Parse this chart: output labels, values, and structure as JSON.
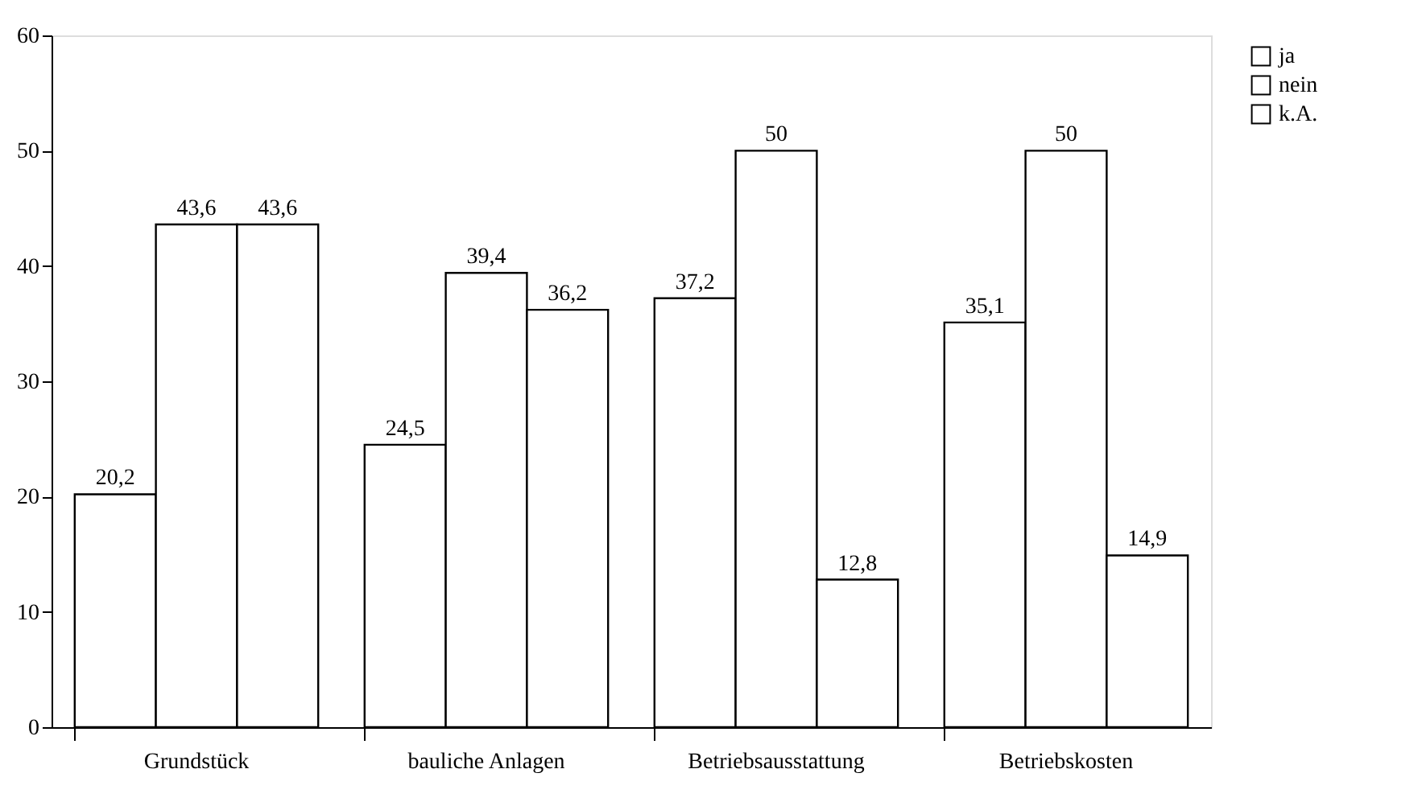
{
  "chart_data": {
    "type": "bar",
    "categories": [
      "Grundstück",
      "bauliche Anlagen",
      "Betriebsausstattung",
      "Betriebskosten"
    ],
    "series": [
      {
        "name": "ja",
        "color": "#ffffff",
        "values": [
          20.2,
          24.5,
          37.2,
          35.1
        ],
        "value_labels": [
          "20,2",
          "24,5",
          "37,2",
          "35,1"
        ]
      },
      {
        "name": "nein",
        "color": "#ffffff",
        "values": [
          43.6,
          39.4,
          50,
          50
        ],
        "value_labels": [
          "43,6",
          "39,4",
          "50",
          "50"
        ]
      },
      {
        "name": "k.A.",
        "color": "#ffffff",
        "values": [
          43.6,
          36.2,
          12.8,
          14.9
        ],
        "value_labels": [
          "43,6",
          "36,2",
          "12,8",
          "14,9"
        ]
      }
    ],
    "ylim": [
      0,
      60
    ],
    "yticks": [
      0,
      10,
      20,
      30,
      40,
      50,
      60
    ],
    "grid": false,
    "legend": "top right"
  }
}
